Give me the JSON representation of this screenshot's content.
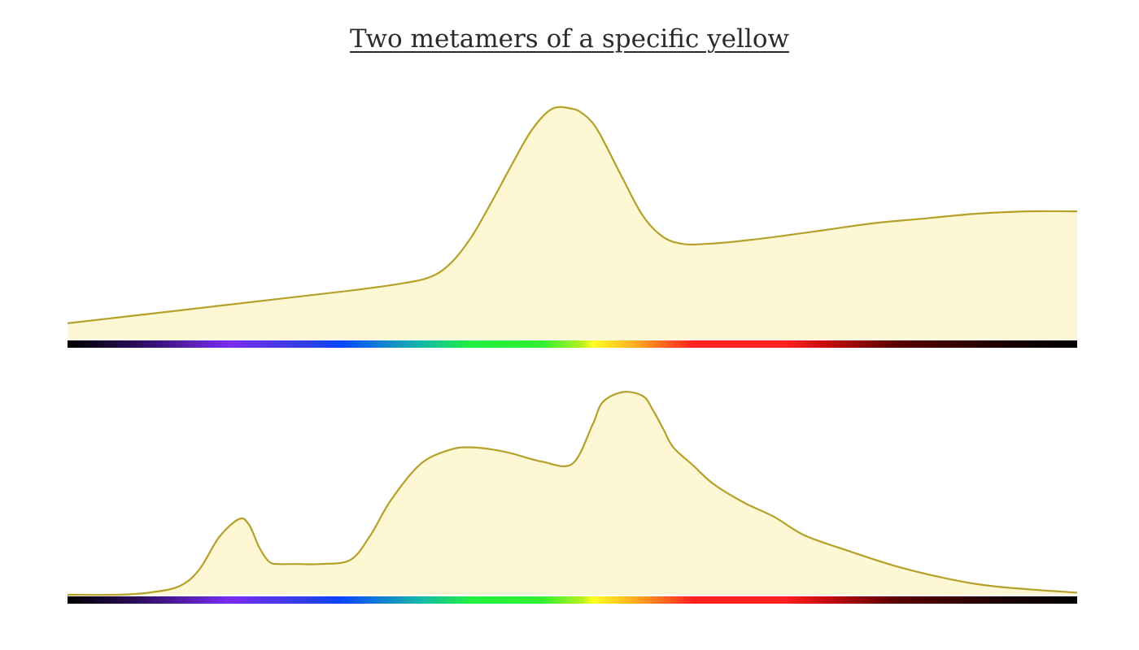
{
  "title": "Two metamers of a specific yellow",
  "colors": {
    "stroke": "#b5a12a",
    "fill": "#fdf7d3"
  },
  "spectrum_stops": [
    {
      "offset": 0.0,
      "color": "#000000"
    },
    {
      "offset": 0.07,
      "color": "#2d0d5e"
    },
    {
      "offset": 0.16,
      "color": "#7a2cf2"
    },
    {
      "offset": 0.24,
      "color": "#2b3fe6"
    },
    {
      "offset": 0.27,
      "color": "#0a45ff"
    },
    {
      "offset": 0.35,
      "color": "#15b8a8"
    },
    {
      "offset": 0.4,
      "color": "#22f040"
    },
    {
      "offset": 0.47,
      "color": "#30f030"
    },
    {
      "offset": 0.51,
      "color": "#b8f020"
    },
    {
      "offset": 0.52,
      "color": "#ffff22"
    },
    {
      "offset": 0.56,
      "color": "#ffb020"
    },
    {
      "offset": 0.62,
      "color": "#ff2020"
    },
    {
      "offset": 0.71,
      "color": "#ff2020"
    },
    {
      "offset": 0.75,
      "color": "#c80d0d"
    },
    {
      "offset": 0.82,
      "color": "#5a0000"
    },
    {
      "offset": 0.93,
      "color": "#1a0000"
    },
    {
      "offset": 1.0,
      "color": "#000000"
    }
  ],
  "chart_data": [
    {
      "type": "area",
      "x_range": [
        0,
        1
      ],
      "y_range": [
        0,
        1
      ],
      "x": [
        0,
        0.1,
        0.2,
        0.28,
        0.33,
        0.36,
        0.38,
        0.4,
        0.42,
        0.44,
        0.46,
        0.48,
        0.5,
        0.51,
        0.52,
        0.53,
        0.55,
        0.57,
        0.59,
        0.61,
        0.63,
        0.66,
        0.7,
        0.75,
        0.8,
        0.85,
        0.9,
        0.95,
        1.0
      ],
      "y": [
        0.07,
        0.12,
        0.17,
        0.21,
        0.24,
        0.27,
        0.33,
        0.44,
        0.59,
        0.75,
        0.9,
        0.99,
        0.99,
        0.97,
        0.93,
        0.86,
        0.69,
        0.53,
        0.44,
        0.41,
        0.41,
        0.42,
        0.44,
        0.47,
        0.5,
        0.52,
        0.54,
        0.55,
        0.55
      ]
    },
    {
      "type": "area",
      "x": [
        0,
        0.05,
        0.08,
        0.11,
        0.13,
        0.15,
        0.17,
        0.18,
        0.19,
        0.2,
        0.21,
        0.22,
        0.23,
        0.25,
        0.28,
        0.3,
        0.32,
        0.35,
        0.38,
        0.4,
        0.42,
        0.44,
        0.47,
        0.5,
        0.52,
        0.53,
        0.55,
        0.57,
        0.58,
        0.59,
        0.6,
        0.62,
        0.64,
        0.67,
        0.7,
        0.73,
        0.77,
        0.82,
        0.87,
        0.92,
        1.0
      ],
      "y": [
        0.0,
        0.0,
        0.01,
        0.04,
        0.12,
        0.28,
        0.37,
        0.34,
        0.23,
        0.16,
        0.15,
        0.15,
        0.15,
        0.15,
        0.17,
        0.29,
        0.46,
        0.64,
        0.71,
        0.72,
        0.71,
        0.69,
        0.65,
        0.64,
        0.83,
        0.94,
        0.99,
        0.97,
        0.9,
        0.81,
        0.72,
        0.63,
        0.54,
        0.45,
        0.38,
        0.29,
        0.22,
        0.14,
        0.08,
        0.04,
        0.01
      ]
    }
  ]
}
